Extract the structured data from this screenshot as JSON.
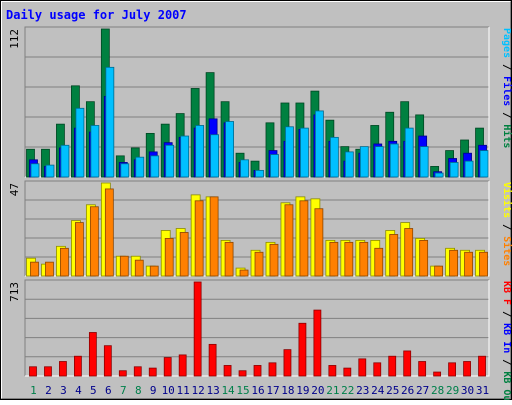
{
  "chart_data": {
    "type": "bar",
    "title": "Daily usage for July 2007",
    "days": [
      "1",
      "2",
      "3",
      "4",
      "5",
      "6",
      "7",
      "8",
      "9",
      "10",
      "11",
      "12",
      "13",
      "14",
      "15",
      "16",
      "17",
      "18",
      "19",
      "20",
      "21",
      "22",
      "23",
      "24",
      "25",
      "26",
      "27",
      "28",
      "29",
      "30",
      "31"
    ],
    "weekend_days": [
      "1",
      "7",
      "8",
      "14",
      "15",
      "21",
      "22",
      "28",
      "29"
    ],
    "panels": [
      {
        "id": "hits",
        "max_label": "112",
        "ymax": 112,
        "legend": [
          {
            "text": "Pages",
            "color": "#00c0ff"
          },
          {
            "text": " / ",
            "color": "#000000"
          },
          {
            "text": "Files",
            "color": "#0000ff"
          },
          {
            "text": " / ",
            "color": "#000000"
          },
          {
            "text": "Hits",
            "color": "#008040"
          }
        ],
        "series": [
          {
            "name": "Hits",
            "color": "#008040",
            "values": [
              21,
              21,
              40,
              69,
              57,
              112,
              16,
              22,
              33,
              40,
              48,
              67,
              79,
              57,
              18,
              12,
              41,
              56,
              56,
              65,
              43,
              23,
              21,
              39,
              49,
              57,
              47,
              8,
              20,
              28,
              37
            ]
          },
          {
            "name": "Files",
            "color": "#0000ff",
            "values": [
              13,
              8,
              22,
              37,
              34,
              61,
              11,
              13,
              19,
              26,
              30,
              37,
              44,
              41,
              11,
              5,
              20,
              27,
              36,
              47,
              27,
              12,
              18,
              25,
              27,
              27,
              31,
              4,
              14,
              18,
              24
            ]
          },
          {
            "name": "Pages",
            "color": "#00c0ff",
            "values": [
              10,
              9,
              24,
              52,
              39,
              83,
              10,
              15,
              16,
              24,
              31,
              39,
              32,
              42,
              13,
              5,
              17,
              38,
              37,
              50,
              30,
              19,
              23,
              23,
              25,
              37,
              23,
              3,
              11,
              12,
              20
            ]
          }
        ]
      },
      {
        "id": "visits",
        "max_label": "47",
        "ymax": 47,
        "legend": [
          {
            "text": "Visits",
            "color": "#ffff00"
          },
          {
            "text": " / ",
            "color": "#000000"
          },
          {
            "text": "Sites",
            "color": "#ff8000"
          }
        ],
        "series": [
          {
            "name": "Visits",
            "color": "#ffff00",
            "values": [
              9,
              6,
              15,
              28,
              36,
              47,
              10,
              10,
              5,
              23,
              24,
              41,
              40,
              18,
              4,
              13,
              17,
              37,
              40,
              39,
              18,
              18,
              18,
              18,
              23,
              27,
              19,
              5,
              14,
              13,
              13
            ]
          },
          {
            "name": "Sites",
            "color": "#ff8000",
            "values": [
              7,
              7,
              14,
              27,
              35,
              44,
              10,
              8,
              5,
              19,
              22,
              38,
              40,
              17,
              3,
              12,
              16,
              36,
              38,
              34,
              17,
              17,
              17,
              14,
              21,
              24,
              18,
              5,
              13,
              12,
              12
            ]
          }
        ]
      },
      {
        "id": "kbytes",
        "max_label": "713",
        "ymax": 713,
        "legend": [
          {
            "text": "KB F",
            "color": "#ff0000"
          },
          {
            "text": " / ",
            "color": "#000000"
          },
          {
            "text": "KB In",
            "color": "#0000ff"
          },
          {
            "text": " / ",
            "color": "#000000"
          },
          {
            "text": "KB Out",
            "color": "#008040"
          }
        ],
        "series": [
          {
            "name": "KB F",
            "color": "#ff0000",
            "values": [
              70,
              70,
              110,
              150,
              330,
              230,
              40,
              70,
              60,
              140,
              160,
              713,
              240,
              80,
              40,
              80,
              100,
              200,
              400,
              500,
              80,
              60,
              130,
              100,
              150,
              190,
              110,
              30,
              100,
              110,
              150
            ]
          }
        ]
      }
    ],
    "colors": {
      "background": "#c0c0c0",
      "title": "#0000ff",
      "gridline": "#808080",
      "weekday_label": "#00008b",
      "weekend_label": "#00804b"
    }
  }
}
